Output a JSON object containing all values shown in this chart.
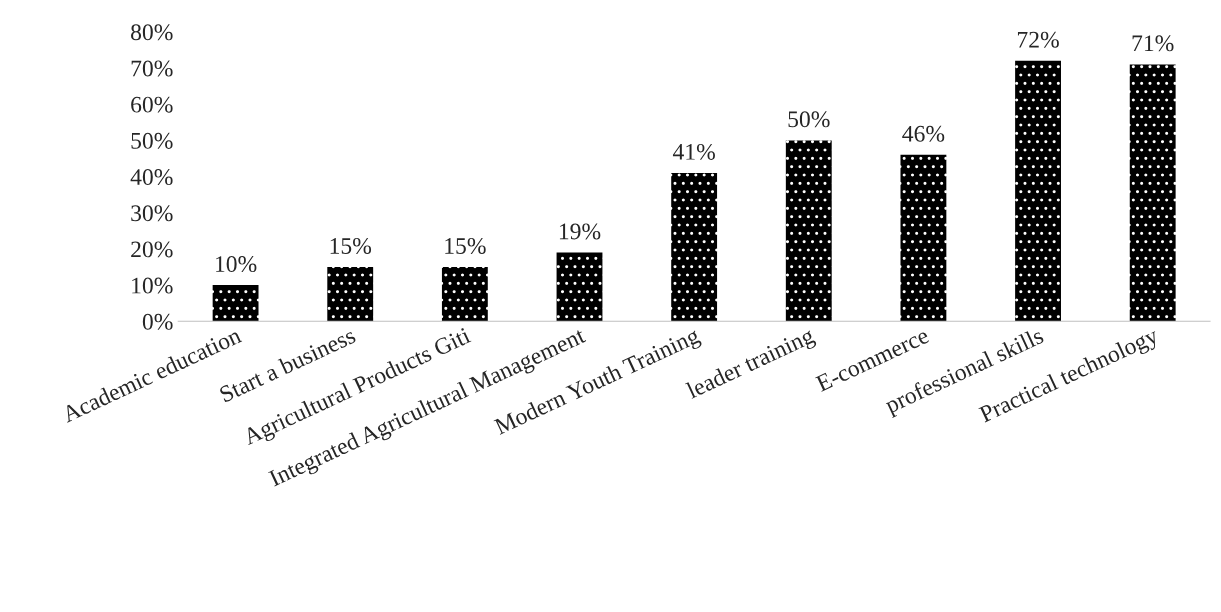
{
  "chart_data": {
    "type": "bar",
    "categories": [
      "Academic education",
      "Start a business",
      "Agricultural Products Giti",
      "Integrated Agricultural Management",
      "Modern Youth Training",
      "leader training",
      "E-commerce",
      "professional skills",
      "Practical technology"
    ],
    "values": [
      10,
      15,
      15,
      19,
      41,
      50,
      46,
      72,
      71
    ],
    "value_labels": [
      "10%",
      "15%",
      "15%",
      "19%",
      "41%",
      "50%",
      "46%",
      "72%",
      "71%"
    ],
    "color": "#000000",
    "ylim": [
      0,
      80
    ],
    "yticks": [
      {
        "value": 0,
        "label": "0%"
      },
      {
        "value": 10,
        "label": "10%"
      },
      {
        "value": 20,
        "label": "20%"
      },
      {
        "value": 30,
        "label": "30%"
      },
      {
        "value": 40,
        "label": "40%"
      },
      {
        "value": 50,
        "label": "50%"
      },
      {
        "value": 60,
        "label": "60%"
      },
      {
        "value": 70,
        "label": "70%"
      },
      {
        "value": 80,
        "label": "80%"
      }
    ],
    "grid": false,
    "legend": false
  }
}
